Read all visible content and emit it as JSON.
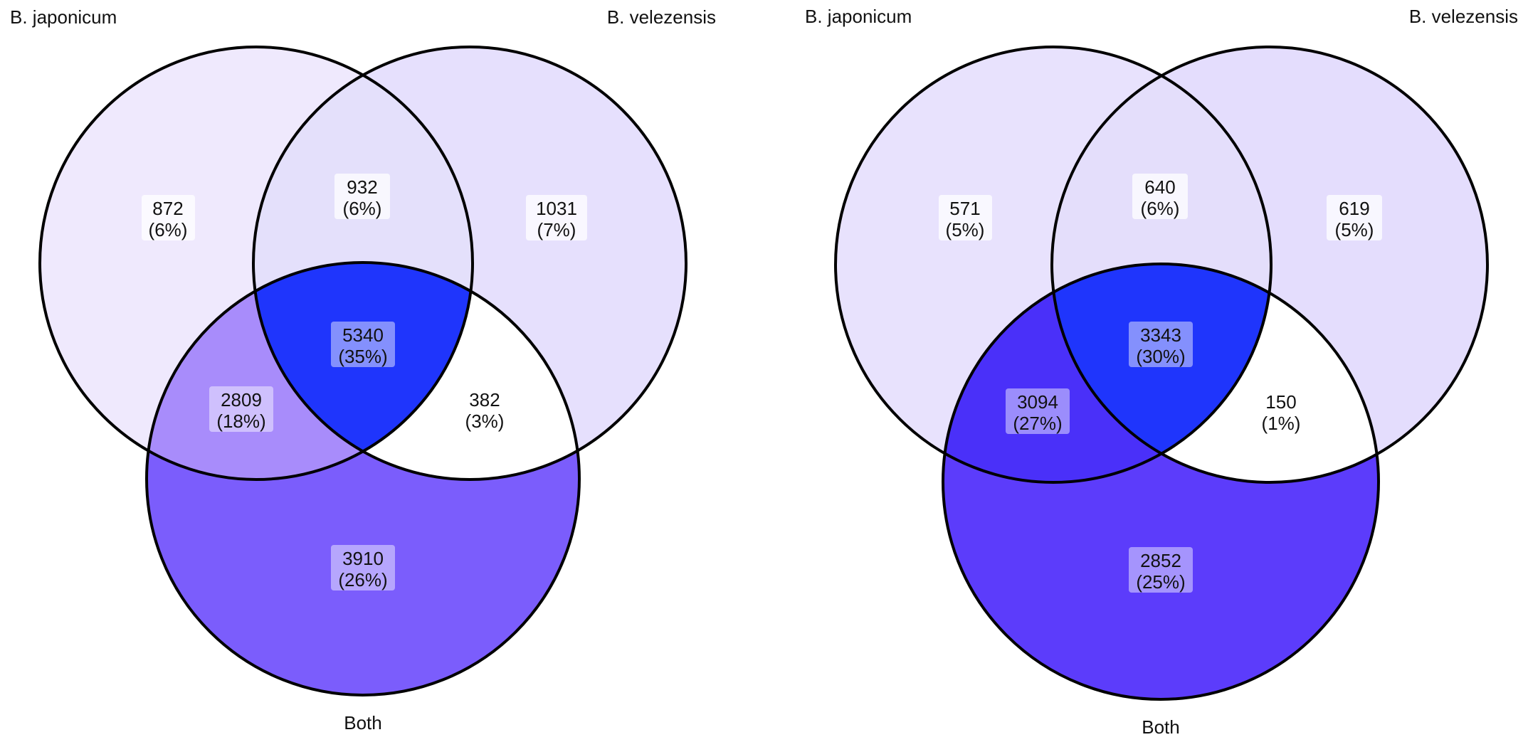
{
  "diagrams": [
    {
      "labels": {
        "left": "B. japonicum",
        "right": "B. velezensis",
        "bottom": "Both"
      },
      "colors": {
        "a": "#efe9fd",
        "b": "#e6e0fd",
        "c": "#7b5dfc",
        "ab": "#e4e0fb",
        "ac": "#a88cfb",
        "bc": "#ffffff",
        "abc": "#1f35fc"
      },
      "regions": {
        "a": {
          "count": "872",
          "pct": "(6%)"
        },
        "b": {
          "count": "1031",
          "pct": "(7%)"
        },
        "c": {
          "count": "3910",
          "pct": "(26%)"
        },
        "ab": {
          "count": "932",
          "pct": "(6%)"
        },
        "ac": {
          "count": "2809",
          "pct": "(18%)"
        },
        "bc": {
          "count": "382",
          "pct": "(3%)"
        },
        "abc": {
          "count": "5340",
          "pct": "(35%)"
        }
      }
    },
    {
      "labels": {
        "left": "B. japonicum",
        "right": "B. velezensis",
        "bottom": "Both"
      },
      "colors": {
        "a": "#e8e2fd",
        "b": "#e4ddfd",
        "c": "#5c3cfb",
        "ab": "#e4defb",
        "ac": "#4a30f9",
        "bc": "#ffffff",
        "abc": "#1f35fc"
      },
      "regions": {
        "a": {
          "count": "571",
          "pct": "(5%)"
        },
        "b": {
          "count": "619",
          "pct": "(5%)"
        },
        "c": {
          "count": "2852",
          "pct": "(25%)"
        },
        "ab": {
          "count": "640",
          "pct": "(6%)"
        },
        "ac": {
          "count": "3094",
          "pct": "(27%)"
        },
        "bc": {
          "count": "150",
          "pct": "(1%)"
        },
        "abc": {
          "count": "3343",
          "pct": "(30%)"
        }
      }
    }
  ]
}
